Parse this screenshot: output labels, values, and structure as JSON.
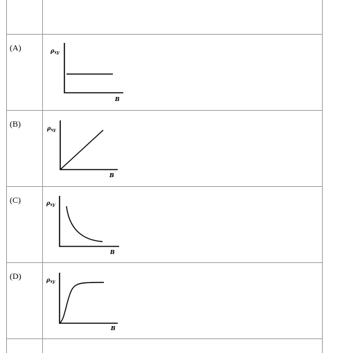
{
  "table": {
    "rows": [
      {
        "label": "(A)",
        "graph": {
          "y_label": "ρ",
          "y_label_sub": "xy",
          "x_label": "B"
        }
      },
      {
        "label": "(B)",
        "graph": {
          "y_label": "ρ",
          "y_label_sub": "xy",
          "x_label": "B"
        }
      },
      {
        "label": "(C)",
        "graph": {
          "y_label": "ρ",
          "y_label_sub": "xy",
          "x_label": "B"
        }
      },
      {
        "label": "(D)",
        "graph": {
          "y_label": "ρ",
          "y_label_sub": "xy",
          "x_label": "B"
        }
      }
    ]
  }
}
